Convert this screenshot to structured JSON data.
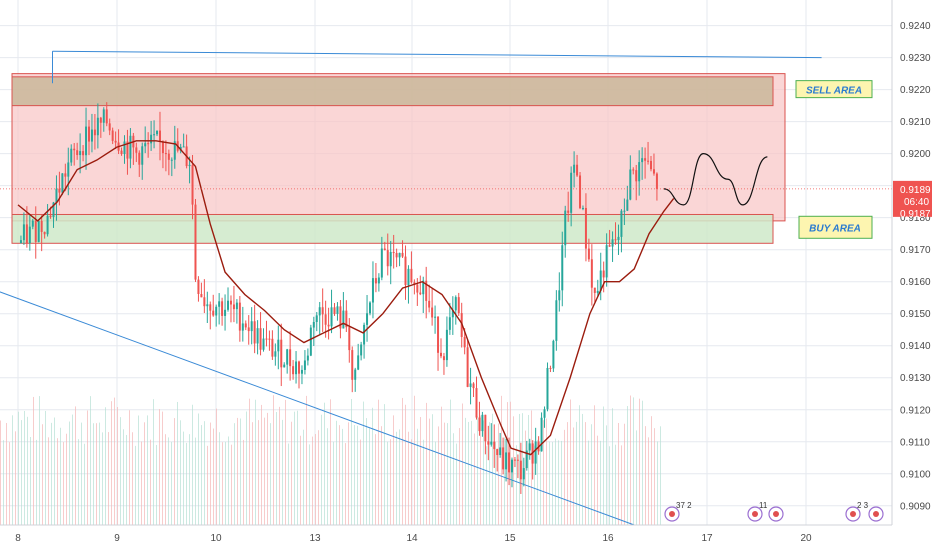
{
  "chart_data": {
    "type": "candlestick",
    "y_axis": {
      "range": [
        0.9084,
        0.9248
      ],
      "ticks": [
        "0.9240",
        "0.9230",
        "0.9220",
        "0.9210",
        "0.9200",
        "0.9190",
        "0.9180",
        "0.9170",
        "0.9160",
        "0.9150",
        "0.9140",
        "0.9130",
        "0.9120",
        "0.9110",
        "0.9100",
        "0.9090"
      ]
    },
    "x_axis": {
      "ticks": [
        "8",
        "9",
        "10",
        "13",
        "14",
        "15",
        "16",
        "17",
        "20"
      ]
    },
    "grid": true,
    "candle_path": [
      [
        0.0,
        0.9172
      ],
      [
        0.3,
        0.918
      ],
      [
        0.5,
        0.9196
      ],
      [
        0.7,
        0.9206
      ],
      [
        0.9,
        0.921
      ],
      [
        1.0,
        0.9205
      ],
      [
        1.2,
        0.92
      ],
      [
        1.4,
        0.9203
      ],
      [
        1.6,
        0.9201
      ],
      [
        1.75,
        0.9198
      ],
      [
        1.8,
        0.9162
      ],
      [
        1.9,
        0.9154
      ],
      [
        2.1,
        0.9152
      ],
      [
        2.3,
        0.9148
      ],
      [
        2.5,
        0.914
      ],
      [
        2.7,
        0.9137
      ],
      [
        2.9,
        0.9132
      ],
      [
        3.0,
        0.915
      ],
      [
        3.2,
        0.915
      ],
      [
        3.35,
        0.9146
      ],
      [
        3.4,
        0.9125
      ],
      [
        3.55,
        0.9152
      ],
      [
        3.7,
        0.9168
      ],
      [
        3.9,
        0.9164
      ],
      [
        4.1,
        0.916
      ],
      [
        4.2,
        0.9148
      ],
      [
        4.3,
        0.9138
      ],
      [
        4.45,
        0.9152
      ],
      [
        4.55,
        0.9132
      ],
      [
        4.7,
        0.9115
      ],
      [
        4.9,
        0.9104
      ],
      [
        5.1,
        0.9101
      ],
      [
        5.3,
        0.9112
      ],
      [
        5.45,
        0.9148
      ],
      [
        5.55,
        0.9178
      ],
      [
        5.65,
        0.9198
      ],
      [
        5.75,
        0.9175
      ],
      [
        5.85,
        0.9155
      ],
      [
        5.95,
        0.9166
      ],
      [
        6.1,
        0.9175
      ],
      [
        6.2,
        0.9192
      ],
      [
        6.35,
        0.9198
      ],
      [
        6.45,
        0.9192
      ],
      [
        6.5,
        0.919
      ]
    ],
    "moving_average": [
      [
        0.0,
        0.9184
      ],
      [
        0.2,
        0.9179
      ],
      [
        0.4,
        0.9185
      ],
      [
        0.6,
        0.9195
      ],
      [
        0.8,
        0.9198
      ],
      [
        1.0,
        0.9202
      ],
      [
        1.2,
        0.9204
      ],
      [
        1.4,
        0.9204
      ],
      [
        1.6,
        0.9203
      ],
      [
        1.8,
        0.9196
      ],
      [
        1.95,
        0.9178
      ],
      [
        2.1,
        0.9163
      ],
      [
        2.3,
        0.9156
      ],
      [
        2.5,
        0.9151
      ],
      [
        2.7,
        0.9145
      ],
      [
        2.9,
        0.9141
      ],
      [
        3.1,
        0.9144
      ],
      [
        3.3,
        0.9147
      ],
      [
        3.5,
        0.9144
      ],
      [
        3.7,
        0.915
      ],
      [
        3.9,
        0.9158
      ],
      [
        4.1,
        0.916
      ],
      [
        4.3,
        0.9156
      ],
      [
        4.5,
        0.9147
      ],
      [
        4.7,
        0.913
      ],
      [
        4.9,
        0.9115
      ],
      [
        5.0,
        0.9108
      ],
      [
        5.2,
        0.9106
      ],
      [
        5.4,
        0.9112
      ],
      [
        5.6,
        0.913
      ],
      [
        5.8,
        0.915
      ],
      [
        5.95,
        0.916
      ],
      [
        6.1,
        0.916
      ],
      [
        6.25,
        0.9164
      ],
      [
        6.4,
        0.9175
      ],
      [
        6.55,
        0.9182
      ],
      [
        6.65,
        0.9186
      ]
    ],
    "projection_path": [
      [
        6.55,
        0.9189
      ],
      [
        6.75,
        0.9184
      ],
      [
        6.95,
        0.92
      ],
      [
        7.2,
        0.9192
      ],
      [
        7.35,
        0.9184
      ],
      [
        7.6,
        0.9199
      ]
    ],
    "zones": [
      {
        "kind": "outer",
        "y_top": 0.9225,
        "y_bottom": 0.9179,
        "fill": "#f8c5c5"
      },
      {
        "kind": "sell",
        "y_top": 0.9224,
        "y_bottom": 0.9215,
        "fill": "#c9b79a"
      },
      {
        "kind": "buy",
        "y_top": 0.9181,
        "y_bottom": 0.9172,
        "fill": "#cfe9c9"
      }
    ],
    "trendlines": [
      {
        "name": "upper",
        "points": [
          [
            0.35,
            0.9232
          ],
          [
            8.15,
            0.923
          ]
        ],
        "color": "#3a8ad6"
      },
      {
        "name": "lower",
        "points": [
          [
            -0.2,
            0.9157
          ],
          [
            6.25,
            0.9084
          ]
        ],
        "color": "#3a8ad6"
      }
    ],
    "annotations": [
      {
        "text": "SELL AREA",
        "y": 0.922
      },
      {
        "text": "BUY AREA",
        "y": 0.9177
      }
    ],
    "current_price": {
      "value": "0.9189",
      "countdown": "06:40",
      "second_value": "0.9187"
    },
    "event_labels": [
      "37",
      "2",
      "11",
      "2",
      "3"
    ],
    "colors": {
      "bull": "#26a69a",
      "bear": "#ef5350",
      "ma": "#9b1c0e",
      "trend": "#3a8ad6",
      "grid": "#e6e9ef",
      "price_tag": "#ef5350"
    }
  }
}
